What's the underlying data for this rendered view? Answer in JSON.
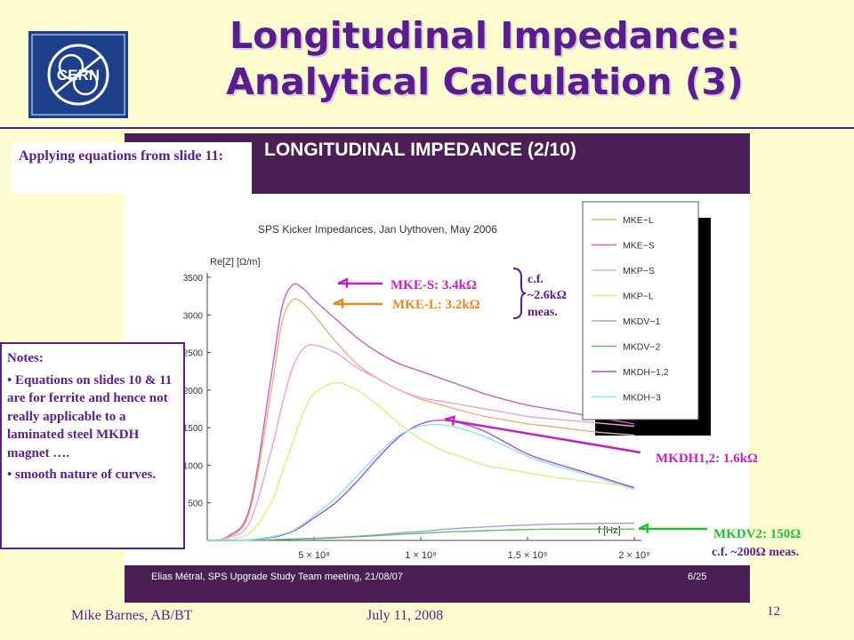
{
  "slide": {
    "title_line1": "Longitudinal Impedance:",
    "title_line2": "Analytical Calculation (3)",
    "logo_text": "CERN",
    "footer_author": "Mike Barnes, AB/BT",
    "footer_date": "July 11, 2008",
    "page_number": "12",
    "colors": {
      "background": "#fdfccf",
      "accent": "#5a1e8c",
      "panel": "#4a1f55"
    }
  },
  "inner_slide": {
    "heading": "LONGITUDINAL IMPEDANCE (2/10)",
    "footer_left": "Elias Métral, SPS Upgrade Study Team meeting, 21/08/07",
    "footer_right": "6/25"
  },
  "boxes": {
    "apply_text": "Applying equations from slide 11:",
    "notes_heading": "Notes:",
    "notes_item1": "• Equations on slides 10 & 11 are for ferrite and hence not really applicable to a laminated steel MKDH magnet ….",
    "notes_item2": "• smooth nature of curves."
  },
  "callouts": {
    "mke_s": "MKE-S: 3.4kΩ",
    "mke_l": "MKE-L: 3.2kΩ",
    "cf_line1": "c.f.",
    "cf_line2": "~2.6kΩ",
    "cf_line3": "meas.",
    "mkdh": "MKDH1,2: 1.6kΩ",
    "mkdv": "MKDV2: 150Ω",
    "mkdv_cf": "c.f. ~200Ω meas.",
    "colors": {
      "mke_s": "#c41fc4",
      "mke_l": "#e88a1a",
      "mkdh": "#c41fc4",
      "mkdv": "#1fbf2f"
    }
  },
  "chart_data": {
    "type": "line",
    "title": "SPS Kicker Impedances, Jan Uythoven, May 2006",
    "xlabel": "f [Hz]",
    "ylabel": "Re[Z] [Ω/m]",
    "xlim": [
      0,
      2000000000
    ],
    "ylim": [
      0,
      3500
    ],
    "xticks": [
      500000000,
      1000000000,
      1500000000,
      2000000000
    ],
    "xtick_labels": [
      "5 × 10⁸",
      "1 × 10⁹",
      "1.5 × 10⁹",
      "2 × 10⁹"
    ],
    "yticks": [
      500,
      1000,
      1500,
      2000,
      2500,
      3000,
      3500
    ],
    "ytick_labels": [
      "500",
      "1000",
      "1500",
      "2000",
      "2500",
      "3000",
      "3500"
    ],
    "legend_position": "top-right",
    "grid": false,
    "x": [
      0,
      100000000,
      200000000,
      300000000,
      350000000,
      400000000,
      450000000,
      500000000,
      600000000,
      700000000,
      800000000,
      900000000,
      1000000000,
      1100000000,
      1200000000,
      1300000000,
      1400000000,
      1500000000,
      1600000000,
      1800000000,
      2000000000
    ],
    "series": [
      {
        "name": "MKE−L",
        "color": "#e6b27a",
        "values": [
          0,
          50,
          400,
          2000,
          2900,
          3200,
          3150,
          3000,
          2650,
          2350,
          2150,
          2000,
          1880,
          1800,
          1720,
          1650,
          1600,
          1550,
          1520,
          1450,
          1400
        ]
      },
      {
        "name": "MKE−S",
        "color": "#cf5fc6",
        "values": [
          0,
          60,
          450,
          2200,
          3100,
          3400,
          3350,
          3200,
          2950,
          2700,
          2500,
          2350,
          2250,
          2150,
          2050,
          1950,
          1870,
          1800,
          1750,
          1650,
          1550
        ]
      },
      {
        "name": "MKP−S",
        "color": "#f0a0d8",
        "values": [
          0,
          40,
          250,
          1200,
          1800,
          2300,
          2550,
          2600,
          2500,
          2300,
          2150,
          2000,
          1900,
          1850,
          1800,
          1750,
          1700,
          1650,
          1620,
          1570,
          1520
        ]
      },
      {
        "name": "MKP−L",
        "color": "#e8e880",
        "values": [
          0,
          20,
          100,
          500,
          900,
          1300,
          1700,
          1950,
          2100,
          2000,
          1800,
          1550,
          1350,
          1200,
          1100,
          1000,
          950,
          900,
          850,
          780,
          720
        ]
      },
      {
        "name": "MKDV−1",
        "color": "#a0a0e0",
        "values": [
          0,
          0,
          5,
          10,
          15,
          20,
          25,
          30,
          40,
          55,
          75,
          100,
          120,
          145,
          165,
          180,
          195,
          205,
          215,
          225,
          230
        ]
      },
      {
        "name": "MKDV−2",
        "color": "#60c060",
        "values": [
          0,
          0,
          3,
          8,
          12,
          16,
          20,
          25,
          35,
          50,
          65,
          80,
          95,
          110,
          120,
          130,
          140,
          145,
          150,
          150,
          150
        ]
      },
      {
        "name": "MKDH−1,2",
        "color": "#b050c0",
        "values": [
          0,
          0,
          10,
          40,
          70,
          120,
          200,
          300,
          500,
          780,
          1100,
          1380,
          1550,
          1600,
          1550,
          1450,
          1300,
          1150,
          1050,
          880,
          700
        ]
      },
      {
        "name": "MKDH−3",
        "color": "#80e8f0",
        "values": [
          0,
          0,
          10,
          50,
          80,
          130,
          220,
          330,
          560,
          850,
          1150,
          1400,
          1520,
          1540,
          1480,
          1380,
          1250,
          1120,
          1020,
          860,
          680
        ]
      }
    ]
  }
}
